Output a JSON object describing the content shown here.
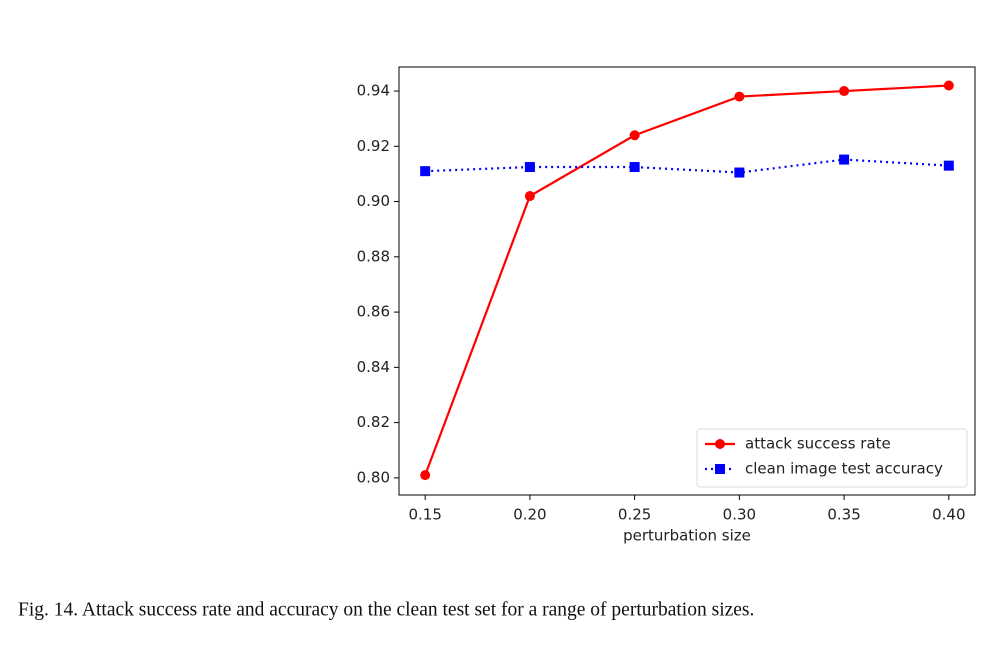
{
  "chart_data": {
    "type": "line",
    "xlabel": "perturbation size",
    "x": [
      0.15,
      0.2,
      0.25,
      0.3,
      0.35,
      0.4
    ],
    "series": [
      {
        "name": "attack success rate",
        "color": "#ff0000",
        "values": [
          0.801,
          0.902,
          0.924,
          0.938,
          0.94,
          0.942
        ]
      },
      {
        "name": "clean image test accuracy",
        "color": "#0000ff",
        "values": [
          0.911,
          0.9125,
          0.9125,
          0.9105,
          0.9152,
          0.913
        ]
      }
    ],
    "xlim": [
      0.1375,
      0.4125
    ],
    "xticks": [
      0.15,
      {
        "value": 0.2,
        "label": "0.20"
      },
      0.25,
      {
        "value": 0.3,
        "label": "0.30"
      },
      0.35,
      {
        "value": 0.4,
        "label": "0.40"
      }
    ],
    "ylim": [
      0.7938,
      0.9487
    ],
    "yticks": [
      {
        "value": 0.8,
        "label": "0.80"
      },
      0.82,
      0.84,
      0.86,
      0.88,
      {
        "value": 0.9,
        "label": "0.90"
      },
      0.92,
      0.94
    ],
    "legend": "lower right",
    "grid": false
  },
  "caption": "Fig. 14.  Attack success rate and accuracy on the clean test set for a range of perturbation sizes."
}
